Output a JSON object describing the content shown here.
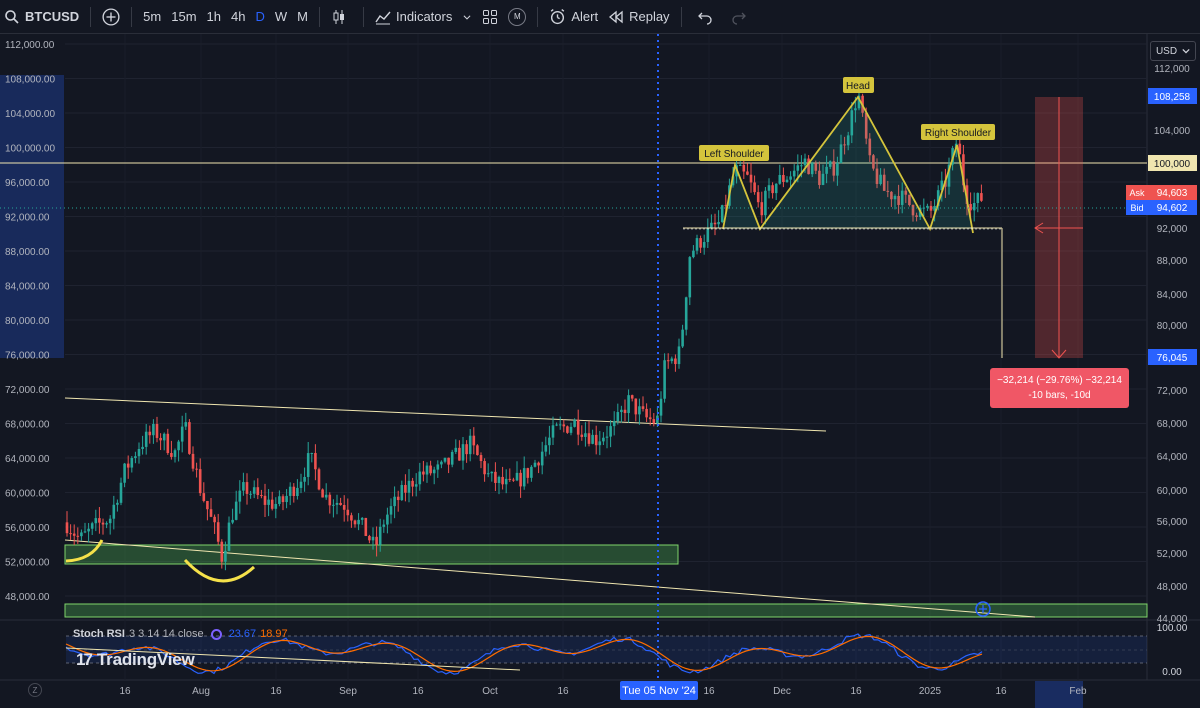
{
  "toolbar": {
    "symbol": "BTCUSD",
    "intervals": [
      "5m",
      "15m",
      "1h",
      "4h",
      "D",
      "W",
      "M"
    ],
    "active_interval": "D",
    "indicators_label": "Indicators",
    "alert_label": "Alert",
    "replay_label": "Replay",
    "m_badge": "M"
  },
  "currency": "USD",
  "price_axis": {
    "left_ticks": [
      "112,000.00",
      "108,000.00",
      "104,000.00",
      "100,000.00",
      "96,000.00",
      "92,000.00",
      "88,000.00",
      "84,000.00",
      "80,000.00",
      "76,000.00",
      "72,000.00",
      "68,000.00",
      "64,000.00",
      "60,000.00",
      "56,000.00",
      "52,000.00",
      "48,000.00"
    ],
    "right_ticks": [
      "112,000",
      "104,000",
      "92,000",
      "88,000",
      "84,000",
      "80,000",
      "72,000",
      "68,000",
      "64,000",
      "60,000",
      "56,000",
      "52,000",
      "48,000",
      "44,000"
    ],
    "label_108": "108,258",
    "label_100": "100,000",
    "ask_label": "Ask",
    "ask_value": "94,603",
    "bid_label": "Bid",
    "bid_value": "94,602",
    "label_76": "76,045"
  },
  "time_axis": {
    "ticks": [
      "16",
      "Aug",
      "16",
      "Sep",
      "16",
      "Oct",
      "16",
      "16",
      "Dec",
      "16",
      "2025",
      "16",
      "Feb"
    ],
    "selected_date": "Tue 05 Nov '24",
    "z_label": "Z"
  },
  "annotations": {
    "left_shoulder": "Left Shoulder",
    "head": "Head",
    "right_shoulder": "Right Shoulder",
    "measure_line1": "−32,214 (−29.76%) −32,214",
    "measure_line2": "-10 bars, -10d"
  },
  "stoch": {
    "name": "Stoch RSI",
    "params": "3 3 14 14 close",
    "k_value": "23.67",
    "d_value": "18.97",
    "k_color": "#2962ff",
    "d_color": "#ff6d00",
    "ticks": [
      "100.00",
      "0.00"
    ]
  },
  "branding": {
    "logo_text": "TradingView"
  },
  "colors": {
    "up": "#26a69a",
    "down": "#ef5350",
    "pattern": "#d4c43c",
    "zone": "#4caf50"
  }
}
